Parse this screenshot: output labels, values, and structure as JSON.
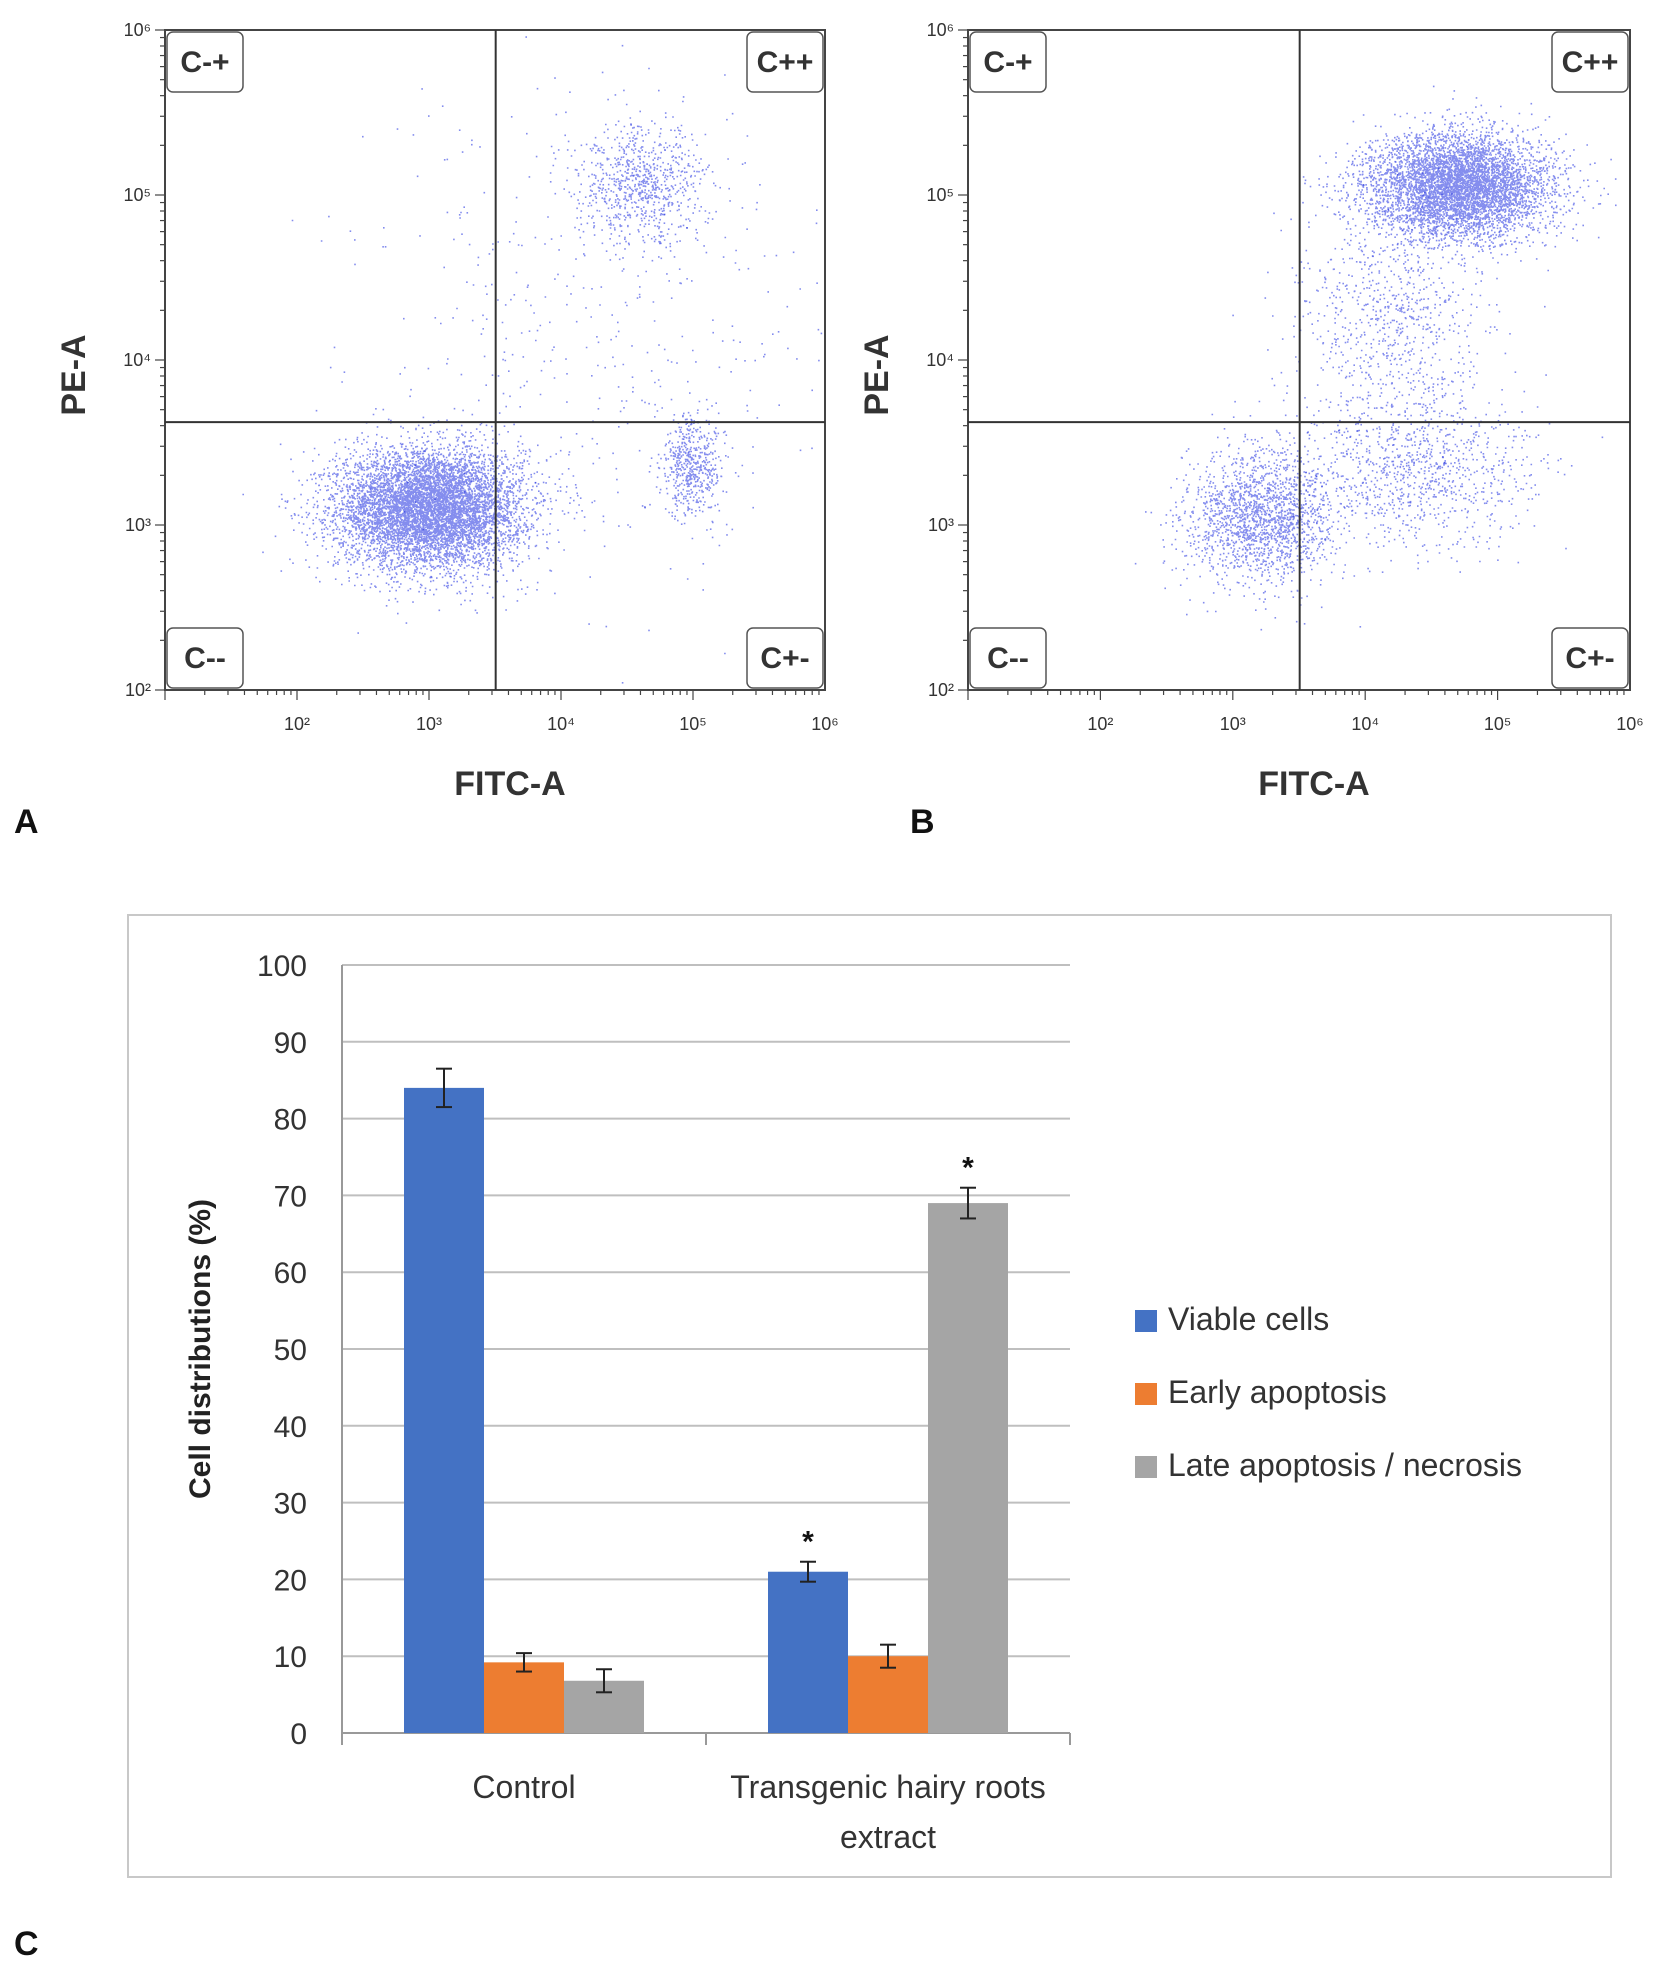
{
  "panels": {
    "a": {
      "letter": "A"
    },
    "b": {
      "letter": "B"
    },
    "c": {
      "letter": "C"
    }
  },
  "colors": {
    "viable": "#4472C4",
    "early": "#ED7D31",
    "late": "#A5A5A5",
    "dots": "#1f2fe0"
  },
  "chart_data": [
    {
      "type": "scatter",
      "panel": "A",
      "xlabel": "FITC-A",
      "ylabel": "PE-A",
      "x_scale": "log",
      "y_scale": "log",
      "xlim": [
        10,
        1000000
      ],
      "ylim": [
        100,
        1000000
      ],
      "x_ticks": [
        "10²",
        "10³",
        "10⁴",
        "10⁵",
        "10⁶"
      ],
      "y_ticks": [
        "10²",
        "10³",
        "10⁴",
        "10⁵",
        "10⁶"
      ],
      "quadrant_gate": {
        "x": 3200,
        "y": 4200
      },
      "quadrant_labels": {
        "top_left": "C-+",
        "top_right": "C++",
        "bottom_left": "C--",
        "bottom_right": "C+-"
      },
      "clusters": [
        {
          "name": "viable",
          "center_log": [
            3.0,
            3.1
          ],
          "spread_log": [
            0.35,
            0.18
          ],
          "weight": 0.8
        },
        {
          "name": "early",
          "center_log": [
            5.0,
            3.35
          ],
          "spread_log": [
            0.12,
            0.15
          ],
          "weight": 0.06
        },
        {
          "name": "late",
          "center_log": [
            4.6,
            5.05
          ],
          "spread_log": [
            0.25,
            0.18
          ],
          "weight": 0.09
        },
        {
          "name": "diffuse",
          "center_log": [
            4.2,
            4.2
          ],
          "spread_log": [
            0.9,
            0.8
          ],
          "weight": 0.05
        }
      ]
    },
    {
      "type": "scatter",
      "panel": "B",
      "xlabel": "FITC-A",
      "ylabel": "PE-A",
      "x_scale": "log",
      "y_scale": "log",
      "xlim": [
        10,
        1000000
      ],
      "ylim": [
        100,
        1000000
      ],
      "x_ticks": [
        "10²",
        "10³",
        "10⁴",
        "10⁵",
        "10⁶"
      ],
      "y_ticks": [
        "10²",
        "10³",
        "10⁴",
        "10⁵",
        "10⁶"
      ],
      "quadrant_gate": {
        "x": 3200,
        "y": 4200
      },
      "quadrant_labels": {
        "top_left": "C-+",
        "top_right": "C++",
        "bottom_left": "C--",
        "bottom_right": "C+-"
      },
      "clusters": [
        {
          "name": "viable",
          "center_log": [
            3.2,
            3.05
          ],
          "spread_log": [
            0.28,
            0.2
          ],
          "weight": 0.2
        },
        {
          "name": "early",
          "center_log": [
            4.4,
            3.3
          ],
          "spread_log": [
            0.45,
            0.22
          ],
          "weight": 0.1
        },
        {
          "name": "late",
          "center_log": [
            4.7,
            5.05
          ],
          "spread_log": [
            0.35,
            0.16
          ],
          "weight": 0.6
        },
        {
          "name": "bridge",
          "center_log": [
            4.2,
            4.2
          ],
          "spread_log": [
            0.35,
            0.4
          ],
          "weight": 0.1
        }
      ]
    },
    {
      "type": "bar",
      "panel": "C",
      "categories": [
        "Control",
        "Transgenic  hairy roots extract"
      ],
      "category_lines": [
        [
          "Control"
        ],
        [
          "Transgenic  hairy roots",
          "extract"
        ]
      ],
      "series": [
        {
          "name": "Viable cells",
          "values": [
            84,
            21
          ],
          "errors": [
            2.5,
            1.3
          ],
          "significant": [
            false,
            true
          ]
        },
        {
          "name": "Early apoptosis",
          "values": [
            9.2,
            10
          ],
          "errors": [
            1.2,
            1.5
          ],
          "significant": [
            false,
            false
          ]
        },
        {
          "name": "Late apoptosis / necrosis",
          "values": [
            6.8,
            69
          ],
          "errors": [
            1.5,
            2.0
          ],
          "significant": [
            false,
            true
          ]
        }
      ],
      "ylabel": "Cell distributions  (%)",
      "xlabel": "",
      "ylim": [
        0,
        100
      ],
      "yticks": [
        0,
        10,
        20,
        30,
        40,
        50,
        60,
        70,
        80,
        90,
        100
      ],
      "significance_marker": "*",
      "grid": true,
      "legend_position": "right"
    }
  ]
}
